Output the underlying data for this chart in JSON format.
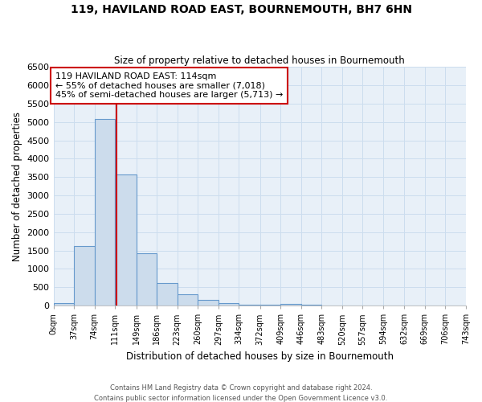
{
  "title": "119, HAVILAND ROAD EAST, BOURNEMOUTH, BH7 6HN",
  "subtitle": "Size of property relative to detached houses in Bournemouth",
  "xlabel": "Distribution of detached houses by size in Bournemouth",
  "ylabel": "Number of detached properties",
  "bar_color": "#ccdcec",
  "bar_edge_color": "#6699cc",
  "vline_x": 114,
  "vline_color": "#cc0000",
  "annotation_line1": "119 HAVILAND ROAD EAST: 114sqm",
  "annotation_line2": "← 55% of detached houses are smaller (7,018)",
  "annotation_line3": "45% of semi-detached houses are larger (5,713) →",
  "annotation_box_color": "#cc0000",
  "xlim": [
    0,
    743
  ],
  "ylim": [
    0,
    6500
  ],
  "bin_edges": [
    0,
    37,
    74,
    111,
    149,
    186,
    223,
    260,
    297,
    334,
    372,
    409,
    446,
    483,
    520,
    557,
    594,
    632,
    669,
    706,
    743
  ],
  "bin_heights": [
    75,
    1620,
    5080,
    3580,
    1420,
    620,
    300,
    150,
    75,
    35,
    20,
    50,
    15,
    0,
    0,
    0,
    0,
    0,
    0,
    0
  ],
  "tick_labels": [
    "0sqm",
    "37sqm",
    "74sqm",
    "111sqm",
    "149sqm",
    "186sqm",
    "223sqm",
    "260sqm",
    "297sqm",
    "334sqm",
    "372sqm",
    "409sqm",
    "446sqm",
    "483sqm",
    "520sqm",
    "557sqm",
    "594sqm",
    "632sqm",
    "669sqm",
    "706sqm",
    "743sqm"
  ],
  "yticks": [
    0,
    500,
    1000,
    1500,
    2000,
    2500,
    3000,
    3500,
    4000,
    4500,
    5000,
    5500,
    6000,
    6500
  ],
  "footer1": "Contains HM Land Registry data © Crown copyright and database right 2024.",
  "footer2": "Contains public sector information licensed under the Open Government Licence v3.0.",
  "background_color": "#ffffff",
  "grid_color": "#ccddee"
}
